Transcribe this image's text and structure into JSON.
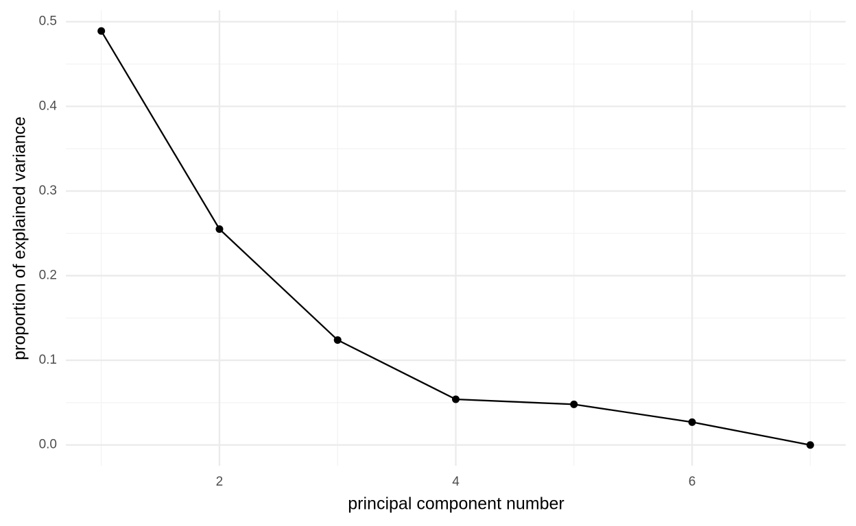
{
  "chart_data": {
    "type": "line",
    "x_label": "principal component number",
    "y_label": "proportion of explained variance",
    "x": [
      1,
      2,
      3,
      4,
      5,
      6,
      7
    ],
    "values": [
      0.489,
      0.255,
      0.124,
      0.054,
      0.048,
      0.027,
      0.0
    ],
    "color": "#000000",
    "xlim": [
      0.7,
      7.3
    ],
    "xticks": [
      2,
      4,
      6
    ],
    "x_minor_ticks": [
      1,
      3,
      5,
      7
    ],
    "ylim": [
      -0.0245,
      0.5135
    ],
    "yticks": [
      {
        "value": 0,
        "label": "0.0"
      },
      0.1,
      0.2,
      0.3,
      0.4,
      0.5
    ],
    "y_minor_ticks": [
      0.05,
      0.15,
      0.25,
      0.35,
      0.45
    ],
    "grid": true
  }
}
